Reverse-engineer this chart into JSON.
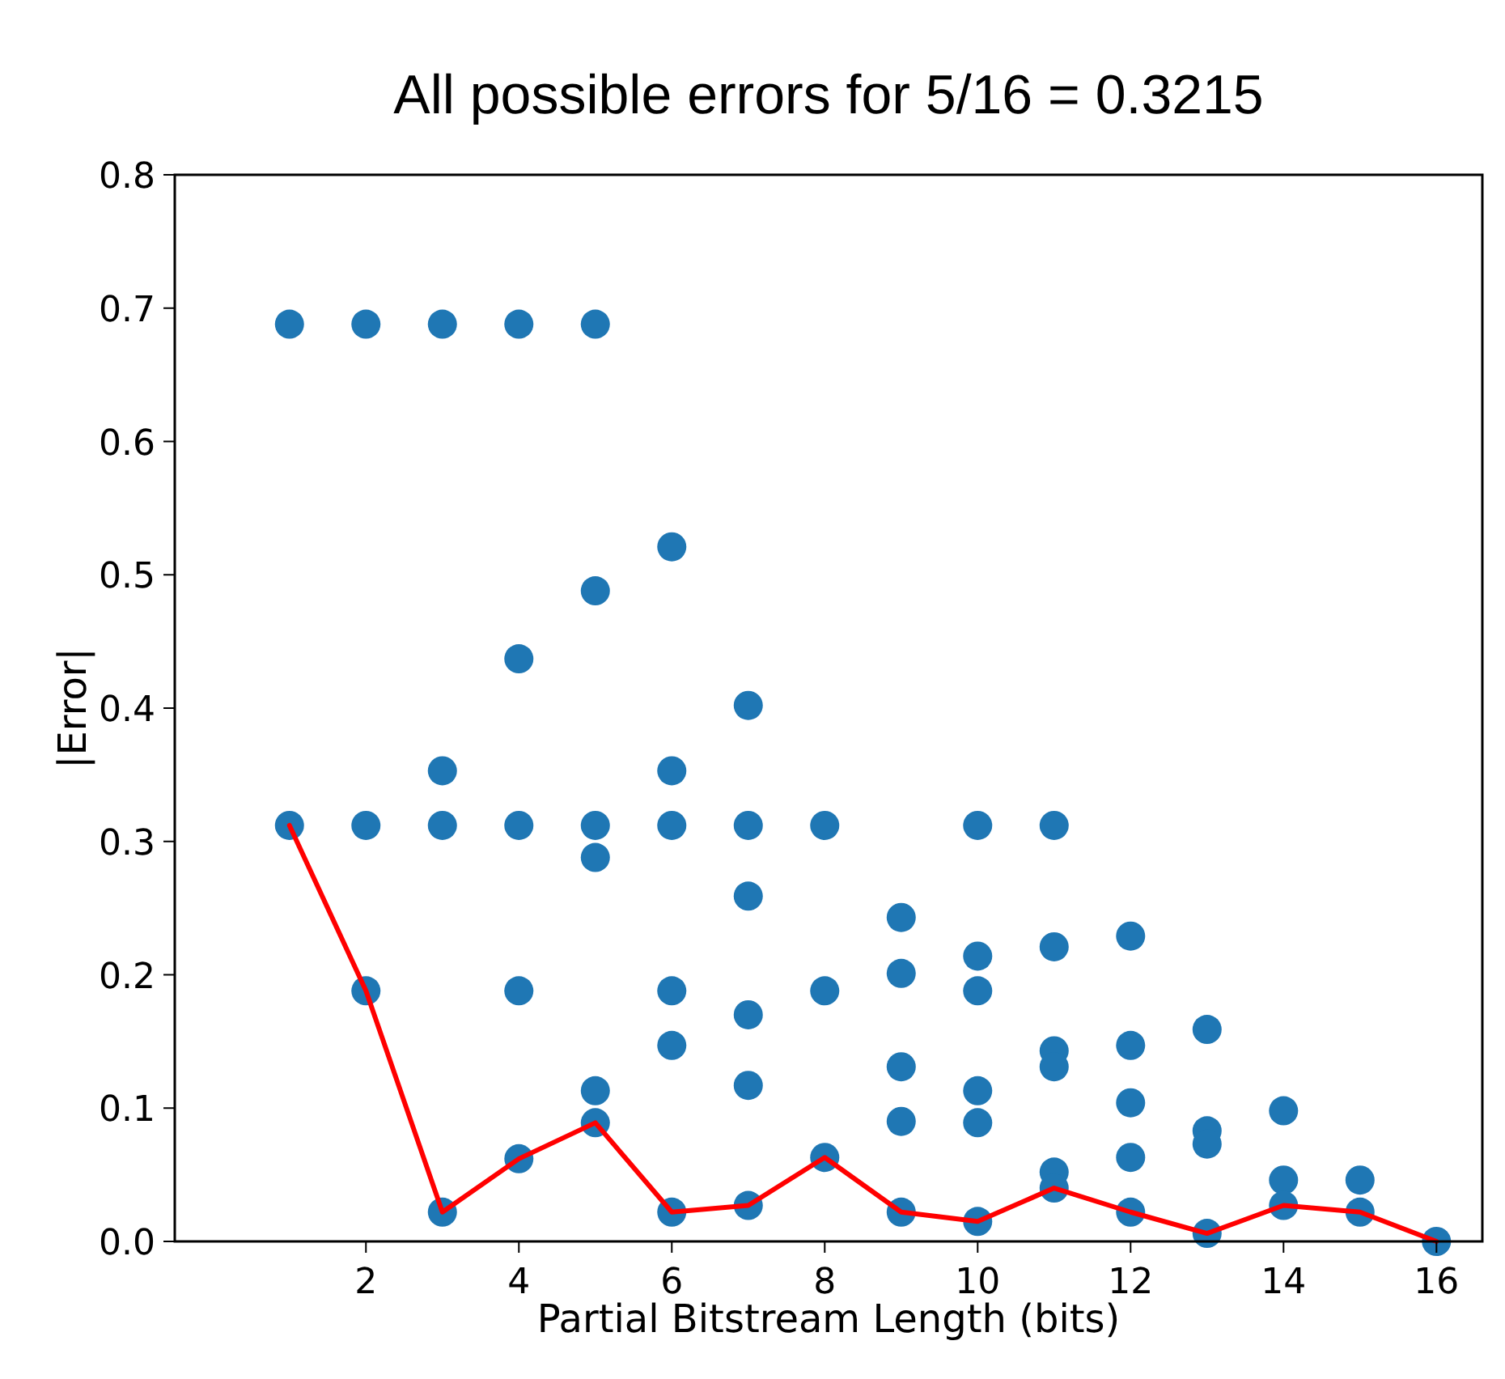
{
  "chart_data": {
    "type": "scatter",
    "title": "All possible errors for 5/16 = 0.3215",
    "xlabel": "Partial Bitstream Length (bits)",
    "ylabel": "|Error|",
    "xlim": [
      -0.5,
      16.6
    ],
    "ylim": [
      0,
      0.8
    ],
    "xticks": [
      2,
      4,
      6,
      8,
      10,
      12,
      14,
      16
    ],
    "yticks": [
      {
        "value": 0,
        "label": "0.0"
      },
      {
        "value": 0.1,
        "label": "0.1"
      },
      {
        "value": 0.2,
        "label": "0.2"
      },
      {
        "value": 0.3,
        "label": "0.3"
      },
      {
        "value": 0.4,
        "label": "0.4"
      },
      {
        "value": 0.5,
        "label": "0.5"
      },
      {
        "value": 0.6,
        "label": "0.6"
      },
      {
        "value": 0.7,
        "label": "0.7"
      },
      {
        "value": 0.8,
        "label": "0.8"
      }
    ],
    "grid": false,
    "series": [
      {
        "color": "#1f77b4",
        "marker": "circle",
        "x": [
          1,
          1,
          2,
          2,
          2,
          3,
          3,
          3,
          3,
          4,
          4,
          4,
          4,
          4,
          5,
          5,
          5,
          5,
          5,
          5,
          6,
          6,
          6,
          6,
          6,
          6,
          7,
          7,
          7,
          7,
          7,
          7,
          8,
          8,
          8,
          9,
          9,
          9,
          9,
          9,
          10,
          10,
          10,
          10,
          10,
          10,
          11,
          11,
          11,
          11,
          11,
          11,
          12,
          12,
          12,
          12,
          12,
          13,
          13,
          13,
          13,
          14,
          14,
          14,
          15,
          15,
          16
        ],
        "values": [
          0.688,
          0.312,
          0.688,
          0.312,
          0.188,
          0.688,
          0.353,
          0.312,
          0.022,
          0.688,
          0.437,
          0.312,
          0.188,
          0.062,
          0.688,
          0.488,
          0.312,
          0.288,
          0.113,
          0.089,
          0.521,
          0.353,
          0.312,
          0.188,
          0.147,
          0.022,
          0.402,
          0.312,
          0.259,
          0.17,
          0.117,
          0.027,
          0.312,
          0.188,
          0.063,
          0.243,
          0.201,
          0.131,
          0.09,
          0.022,
          0.312,
          0.214,
          0.188,
          0.113,
          0.089,
          0.015,
          0.312,
          0.221,
          0.143,
          0.131,
          0.052,
          0.04,
          0.229,
          0.147,
          0.104,
          0.063,
          0.022,
          0.159,
          0.083,
          0.073,
          0.006,
          0.098,
          0.046,
          0.027,
          0.046,
          0.022,
          0
        ]
      },
      {
        "type": "line",
        "color": "#ff0000",
        "marker": "none",
        "line_style": "solid",
        "x": [
          1,
          2,
          3,
          4,
          5,
          6,
          7,
          8,
          9,
          10,
          11,
          12,
          13,
          14,
          15,
          16
        ],
        "values": [
          0.312,
          0.188,
          0.022,
          0.062,
          0.089,
          0.022,
          0.027,
          0.063,
          0.022,
          0.015,
          0.04,
          0.022,
          0.006,
          0.027,
          0.022,
          0
        ]
      }
    ]
  }
}
